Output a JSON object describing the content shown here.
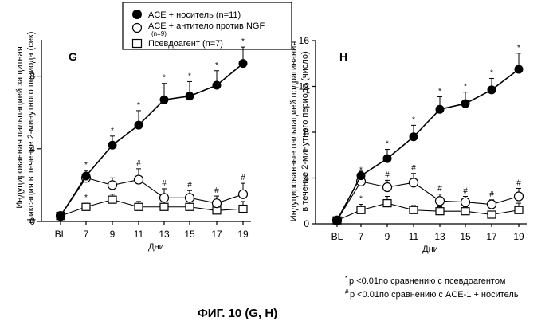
{
  "figure_title": "ФИГ. 10 (G, H)",
  "legend": {
    "items": [
      {
        "marker": "filled-circle",
        "label": "ACE + носитель (n=11)"
      },
      {
        "marker": "open-circle",
        "label": "ACE + антитело против NGF",
        "sublabel": "(n=9)"
      },
      {
        "marker": "open-square",
        "label": "Псевдоагент (n=7)"
      }
    ]
  },
  "footnotes": [
    {
      "symbol": "*",
      "text": "p <0.01по сравнению с псевдоагентом"
    },
    {
      "symbol": "#",
      "text": "p <0.01по сравнению с ACE-1 + носитель"
    }
  ],
  "chart_data": [
    {
      "type": "line",
      "panel_label": "G",
      "categories": [
        "BL",
        "7",
        "9",
        "11",
        "13",
        "15",
        "17",
        "19"
      ],
      "xlabel": "Дни",
      "ylabel_lines": [
        "Индуцированная пальпацией защитная",
        "фиксация в течение 2-минутного периода (сек)"
      ],
      "ylim": [
        0,
        10
      ],
      "yticks": [
        0,
        4,
        8
      ],
      "series": [
        {
          "name": "ACE + носитель (n=11)",
          "marker": "filled-circle",
          "values": [
            0.3,
            2.5,
            4.2,
            5.3,
            6.7,
            6.9,
            7.5,
            8.7
          ],
          "errors": [
            0,
            0.3,
            0.5,
            0.8,
            0.9,
            0.8,
            0.8,
            0.9
          ],
          "annotations": [
            "",
            "*",
            "*",
            "*",
            "*",
            "*",
            "*",
            "*"
          ]
        },
        {
          "name": "ACE + антитело против NGF (n=9)",
          "marker": "open-circle",
          "values": [
            0.3,
            2.4,
            2.0,
            2.3,
            1.3,
            1.3,
            1.0,
            1.5
          ],
          "errors": [
            0,
            0.3,
            0.4,
            0.6,
            0.5,
            0.4,
            0.4,
            0.6
          ],
          "annotations": [
            "",
            "",
            "",
            "#",
            "#",
            "#",
            "#",
            "#"
          ]
        },
        {
          "name": "Псевдоагент (n=7)",
          "marker": "open-square",
          "values": [
            0.3,
            0.8,
            1.2,
            0.8,
            0.8,
            0.8,
            0.6,
            0.7
          ],
          "errors": [
            0,
            0.2,
            0.3,
            0.3,
            0.3,
            0.3,
            0.3,
            0.4
          ],
          "annotations": [
            "",
            "*",
            "",
            "",
            "",
            "",
            "",
            ""
          ]
        }
      ]
    },
    {
      "type": "line",
      "panel_label": "H",
      "categories": [
        "BL",
        "7",
        "9",
        "11",
        "13",
        "15",
        "17",
        "19"
      ],
      "xlabel": "Дни",
      "ylabel_lines": [
        "Индуцированные пальпацией подрагивания",
        "в течение 2-минутного периода (число)"
      ],
      "ylim": [
        0,
        16
      ],
      "yticks": [
        0,
        4,
        8,
        12,
        16
      ],
      "series": [
        {
          "name": "ACE + носитель (n=11)",
          "marker": "filled-circle",
          "values": [
            0.3,
            4.2,
            5.7,
            7.6,
            10.0,
            10.5,
            11.7,
            13.5
          ],
          "errors": [
            0,
            0.4,
            0.8,
            1.0,
            1.1,
            1.0,
            1.0,
            1.4
          ],
          "annotations": [
            "",
            "",
            "*",
            "*",
            "*",
            "*",
            "*",
            "*"
          ]
        },
        {
          "name": "ACE + антитело против NGF (n=9)",
          "marker": "open-circle",
          "values": [
            0.3,
            3.7,
            3.2,
            3.6,
            2.0,
            1.9,
            1.7,
            2.4
          ],
          "errors": [
            0,
            0.5,
            0.6,
            0.8,
            0.6,
            0.5,
            0.4,
            0.7
          ],
          "annotations": [
            "",
            "*",
            "#",
            "#",
            "#",
            "#",
            "#",
            "#"
          ]
        },
        {
          "name": "Псевдоагент (n=7)",
          "marker": "open-square",
          "values": [
            0.3,
            1.2,
            1.8,
            1.2,
            1.1,
            1.1,
            0.8,
            1.2
          ],
          "errors": [
            0,
            0.5,
            0.6,
            0.4,
            0.4,
            0.4,
            0.3,
            0.6
          ],
          "annotations": [
            "",
            "*",
            "",
            "",
            "",
            "",
            "",
            ""
          ]
        }
      ]
    }
  ]
}
